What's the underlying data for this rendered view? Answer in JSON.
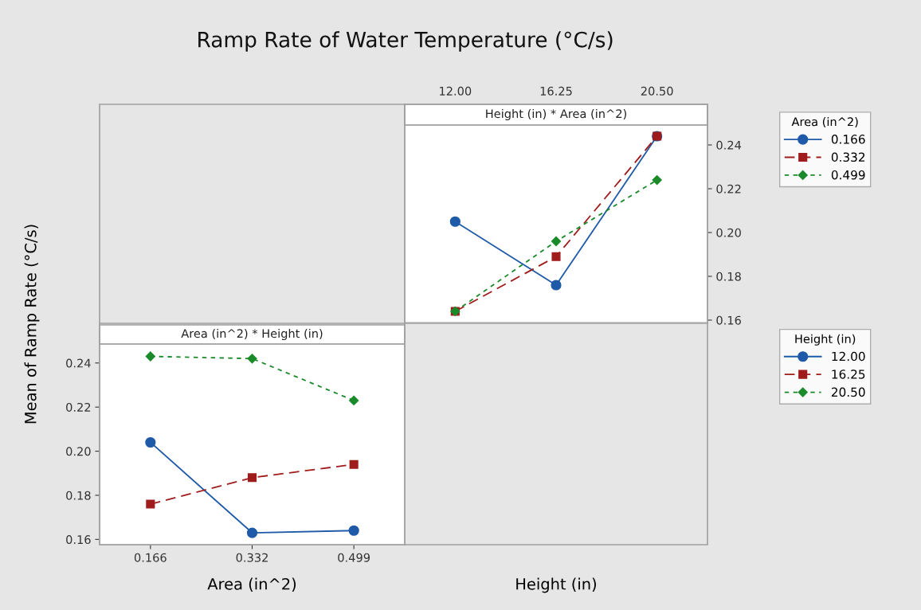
{
  "chart_data": [
    {
      "type": "line",
      "title": "Ramp Rate of Water Temperature (°C/s)",
      "subtitle": "Height (in) * Area (in^2)",
      "xlabel": "Height (in)",
      "legend_title": "Area (in^2)",
      "legend": "top right",
      "grid": false,
      "categories": [
        "12.00",
        "16.25",
        "20.50"
      ],
      "ylim": [
        0.1589,
        0.2491
      ],
      "yticks": [
        0.16,
        0.18,
        {
          "value": 0.2,
          "label": "0.20"
        },
        0.22,
        0.24
      ],
      "series": [
        {
          "name": "0.166",
          "color": "#1f5aa8",
          "marker": "circle",
          "line_style": "solid",
          "values": [
            0.205,
            0.176,
            0.244
          ]
        },
        {
          "name": "0.332",
          "color": "#a01c1c",
          "marker": "square",
          "line_style": "dashed",
          "values": [
            0.164,
            0.189,
            0.244
          ]
        },
        {
          "name": "0.499",
          "color": "#1b8a2a",
          "marker": "diamond",
          "line_style": "dotted",
          "values": [
            0.164,
            0.196,
            0.224
          ]
        }
      ]
    },
    {
      "type": "line",
      "subtitle": "Area (in^2) * Height (in)",
      "xlabel": "Area (in^2)",
      "ylabel": "Mean of Ramp Rate (°C/s)",
      "legend_title": "Height (in)",
      "legend": "right",
      "grid": false,
      "categories": [
        "0.166",
        "0.332",
        "0.499"
      ],
      "ylim": [
        0.1576,
        0.2486
      ],
      "yticks": [
        0.16,
        0.18,
        {
          "value": 0.2,
          "label": "0.20"
        },
        0.22,
        0.24
      ],
      "series": [
        {
          "name": "12.00",
          "color": "#1f5aa8",
          "marker": "circle",
          "line_style": "solid",
          "values": [
            0.204,
            0.163,
            0.164
          ]
        },
        {
          "name": "16.25",
          "color": "#a01c1c",
          "marker": "square",
          "line_style": "dashed",
          "values": [
            0.176,
            0.188,
            0.194
          ]
        },
        {
          "name": "20.50",
          "color": "#1b8a2a",
          "marker": "diamond",
          "line_style": "dotted",
          "values": [
            0.243,
            0.242,
            0.223
          ]
        }
      ]
    }
  ]
}
